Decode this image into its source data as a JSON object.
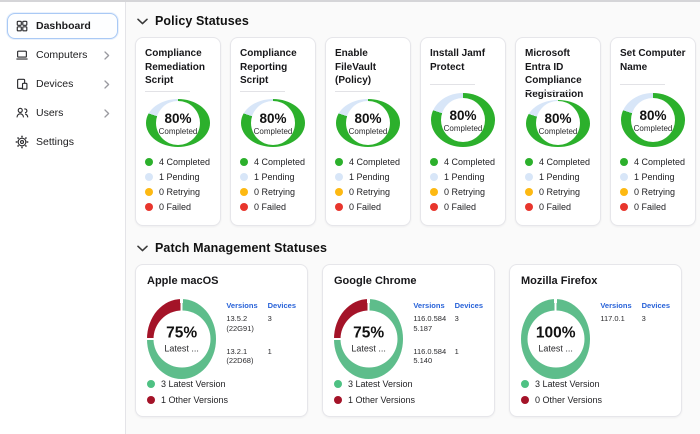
{
  "sidebar": {
    "items": [
      {
        "id": "dashboard",
        "label": "Dashboard",
        "icon": "dashboard-icon",
        "selected": true,
        "chevron": false
      },
      {
        "id": "computers",
        "label": "Computers",
        "icon": "computer-icon",
        "selected": false,
        "chevron": true
      },
      {
        "id": "devices",
        "label": "Devices",
        "icon": "device-icon",
        "selected": false,
        "chevron": true
      },
      {
        "id": "users",
        "label": "Users",
        "icon": "users-icon",
        "selected": false,
        "chevron": true
      },
      {
        "id": "settings",
        "label": "Settings",
        "icon": "gear-icon",
        "selected": false,
        "chevron": false
      }
    ]
  },
  "policy_section": {
    "title": "Policy Statuses",
    "cards": [
      {
        "title": "Compliance Remediation Script",
        "percent": 80,
        "percent_label": "80%",
        "center_sublabel": "Completed",
        "legend": [
          {
            "label": "4 Completed",
            "color": "#2cb02c"
          },
          {
            "label": "1 Pending",
            "color": "#d8e6f8"
          },
          {
            "label": "0 Retrying",
            "color": "#fdb913"
          },
          {
            "label": "0 Failed",
            "color": "#e8362d"
          }
        ]
      },
      {
        "title": "Compliance Reporting Script",
        "percent": 80,
        "percent_label": "80%",
        "center_sublabel": "Completed",
        "legend": [
          {
            "label": "4 Completed",
            "color": "#2cb02c"
          },
          {
            "label": "1 Pending",
            "color": "#d8e6f8"
          },
          {
            "label": "0 Retrying",
            "color": "#fdb913"
          },
          {
            "label": "0 Failed",
            "color": "#e8362d"
          }
        ]
      },
      {
        "title": "Enable FileVault (Policy)",
        "percent": 80,
        "percent_label": "80%",
        "center_sublabel": "Completed",
        "legend": [
          {
            "label": "4 Completed",
            "color": "#2cb02c"
          },
          {
            "label": "1 Pending",
            "color": "#d8e6f8"
          },
          {
            "label": "0 Retrying",
            "color": "#fdb913"
          },
          {
            "label": "0 Failed",
            "color": "#e8362d"
          }
        ]
      },
      {
        "title": "Install Jamf Protect",
        "percent": 80,
        "percent_label": "80%",
        "center_sublabel": "Completed",
        "legend": [
          {
            "label": "4 Completed",
            "color": "#2cb02c"
          },
          {
            "label": "1 Pending",
            "color": "#d8e6f8"
          },
          {
            "label": "0 Retrying",
            "color": "#fdb913"
          },
          {
            "label": "0 Failed",
            "color": "#e8362d"
          }
        ]
      },
      {
        "title": "Microsoft Entra ID Compliance Registration",
        "percent": 80,
        "percent_label": "80%",
        "center_sublabel": "Completed",
        "legend": [
          {
            "label": "4 Completed",
            "color": "#2cb02c"
          },
          {
            "label": "1 Pending",
            "color": "#d8e6f8"
          },
          {
            "label": "0 Retrying",
            "color": "#fdb913"
          },
          {
            "label": "0 Failed",
            "color": "#e8362d"
          }
        ]
      },
      {
        "title": "Set Computer Name",
        "percent": 80,
        "percent_label": "80%",
        "center_sublabel": "Completed",
        "legend": [
          {
            "label": "4 Completed",
            "color": "#2cb02c"
          },
          {
            "label": "1 Pending",
            "color": "#d8e6f8"
          },
          {
            "label": "0 Retrying",
            "color": "#fdb913"
          },
          {
            "label": "0 Failed",
            "color": "#e8362d"
          }
        ]
      }
    ]
  },
  "patch_section": {
    "title": "Patch Management Statuses",
    "table_headers": {
      "versions": "Versions",
      "devices": "Devices"
    },
    "cards": [
      {
        "title": "Apple macOS",
        "percent": 75,
        "percent_label": "75%",
        "center_sublabel": "Latest ...",
        "rows": [
          {
            "version": "13.5.2 (22G91)",
            "devices": "3"
          },
          {
            "version": "13.2.1 (22D68)",
            "devices": "1"
          }
        ],
        "legend": [
          {
            "label": "3 Latest Version",
            "color": "#4ec183"
          },
          {
            "label": "1 Other Versions",
            "color": "#a41328"
          }
        ]
      },
      {
        "title": "Google Chrome",
        "percent": 75,
        "percent_label": "75%",
        "center_sublabel": "Latest ...",
        "rows": [
          {
            "version": "116.0.5845.187",
            "devices": "3"
          },
          {
            "version": "116.0.5845.140",
            "devices": "1"
          }
        ],
        "legend": [
          {
            "label": "3 Latest Version",
            "color": "#4ec183"
          },
          {
            "label": "1 Other Versions",
            "color": "#a41328"
          }
        ]
      },
      {
        "title": "Mozilla Firefox",
        "percent": 100,
        "percent_label": "100%",
        "center_sublabel": "Latest ...",
        "rows": [
          {
            "version": "117.0.1",
            "devices": "3"
          }
        ],
        "legend": [
          {
            "label": "3 Latest Version",
            "color": "#4ec183"
          },
          {
            "label": "0 Other Versions",
            "color": "#a41328"
          }
        ]
      }
    ]
  },
  "colors": {
    "policy_complete": "#2cb02c",
    "policy_pending": "#d8e6f8",
    "policy_retrying": "#fdb913",
    "policy_failed": "#e8362d",
    "patch_latest": "#5ebd8b",
    "patch_other": "#a41328",
    "link_blue": "#2862d8",
    "selected_border": "#a9c9f5"
  }
}
